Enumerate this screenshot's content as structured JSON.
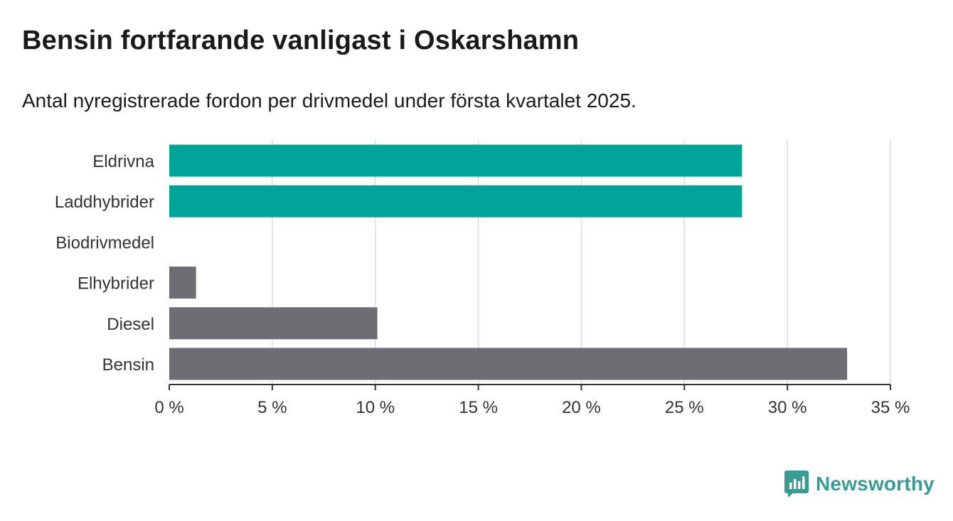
{
  "title": "Bensin fortfarande vanligast i Oskarshamn",
  "subtitle": "Antal nyregistrerade fordon per drivmedel under första kvartalet 2025.",
  "brand": {
    "name": "Newsworthy",
    "icon": "newsworthy-logo-icon",
    "color": "#3a9a94"
  },
  "chart_data": {
    "type": "bar",
    "orientation": "horizontal",
    "title": "Bensin fortfarande vanligast i Oskarshamn",
    "subtitle": "Antal nyregistrerade fordon per drivmedel under första kvartalet 2025.",
    "categories": [
      "Eldrivna",
      "Laddhybrider",
      "Biodrivmedel",
      "Elhybrider",
      "Diesel",
      "Bensin"
    ],
    "values": [
      27.8,
      27.8,
      0,
      1.3,
      10.1,
      32.9
    ],
    "colors": [
      "#00a398",
      "#00a398",
      "#6e6d74",
      "#6e6d74",
      "#6e6d74",
      "#6e6d74"
    ],
    "xlim": [
      0,
      35
    ],
    "xticks": [
      0,
      5,
      10,
      15,
      20,
      25,
      30,
      35
    ],
    "xtick_labels": [
      "0 %",
      "5 %",
      "10 %",
      "15 %",
      "20 %",
      "25 %",
      "30 %",
      "35 %"
    ],
    "grid": true,
    "xlabel": "",
    "ylabel": ""
  }
}
